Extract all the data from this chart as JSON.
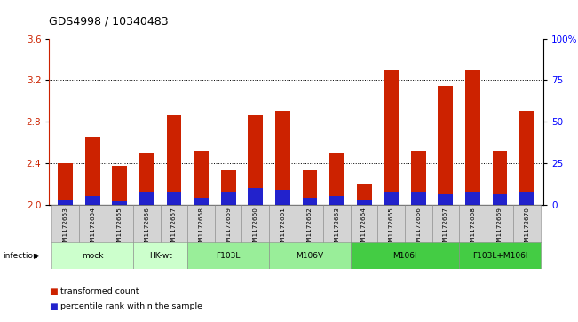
{
  "title": "GDS4998 / 10340483",
  "samples": [
    "GSM1172653",
    "GSM1172654",
    "GSM1172655",
    "GSM1172656",
    "GSM1172657",
    "GSM1172658",
    "GSM1172659",
    "GSM1172660",
    "GSM1172661",
    "GSM1172662",
    "GSM1172663",
    "GSM1172664",
    "GSM1172665",
    "GSM1172666",
    "GSM1172667",
    "GSM1172668",
    "GSM1172669",
    "GSM1172670"
  ],
  "transformed_count": [
    2.4,
    2.65,
    2.37,
    2.5,
    2.86,
    2.52,
    2.33,
    2.86,
    2.9,
    2.33,
    2.49,
    2.2,
    3.3,
    2.52,
    3.14,
    3.3,
    2.52,
    2.9
  ],
  "percentile_rank": [
    3,
    5,
    2,
    8,
    7,
    4,
    7,
    10,
    9,
    4,
    5,
    3,
    7,
    8,
    6,
    8,
    6,
    7
  ],
  "groups": [
    {
      "label": "mock",
      "color": "#ccffcc",
      "start": 0,
      "end": 2
    },
    {
      "label": "HK-wt",
      "color": "#ccffcc",
      "start": 3,
      "end": 4
    },
    {
      "label": "F103L",
      "color": "#99ee99",
      "start": 5,
      "end": 7
    },
    {
      "label": "M106V",
      "color": "#99ee99",
      "start": 8,
      "end": 10
    },
    {
      "label": "M106I",
      "color": "#44cc44",
      "start": 11,
      "end": 14
    },
    {
      "label": "F103L+M106I",
      "color": "#44cc44",
      "start": 15,
      "end": 17
    }
  ],
  "infection_label": "infection",
  "bar_color_red": "#cc2200",
  "bar_color_blue": "#2222cc",
  "ylim_left": [
    2.0,
    3.6
  ],
  "ylim_right": [
    0,
    100
  ],
  "yticks_left": [
    2.0,
    2.4,
    2.8,
    3.2,
    3.6
  ],
  "yticks_right": [
    0,
    25,
    50,
    75,
    100
  ],
  "bar_width": 0.55,
  "gridlines": [
    2.4,
    2.8,
    3.2
  ],
  "legend_items": [
    "transformed count",
    "percentile rank within the sample"
  ],
  "legend_colors": [
    "#cc2200",
    "#2222cc"
  ]
}
